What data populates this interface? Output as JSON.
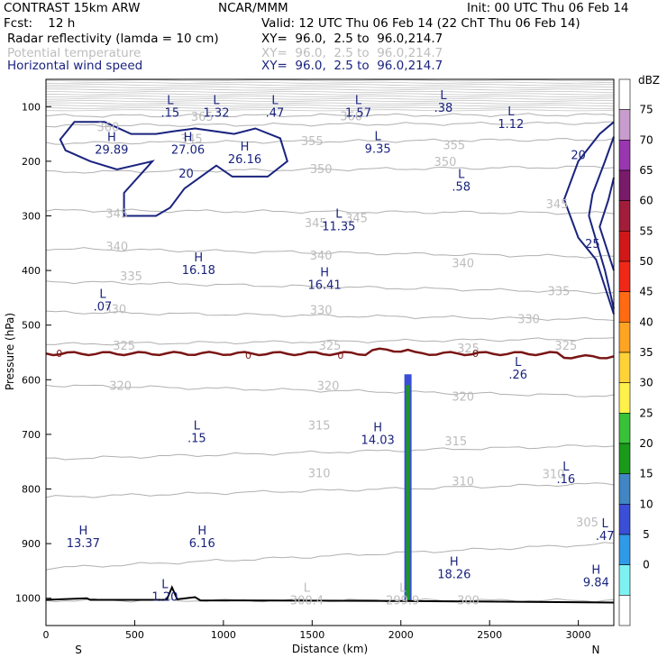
{
  "header": {
    "model": "CONTRAST 15km ARW",
    "org": "NCAR/MMM",
    "init": "Init: 00 UTC Thu 06 Feb 14",
    "fcst": "Fcst:    12 h",
    "valid": "Valid: 12 UTC Thu 06 Feb 14 (22 ChT Thu 06 Feb 14)",
    "fields": [
      {
        "name": "Radar reflectivity (lamda = 10 cm)",
        "xy": "XY=  96.0,  2.5 to  96.0,214.7",
        "color": "#000000"
      },
      {
        "name": "Potential temperature",
        "xy": "XY=  96.0,  2.5 to  96.0,214.7",
        "color": "#bdbdbd"
      },
      {
        "name": "Horizontal wind speed",
        "xy": "XY=  96.0,  2.5 to  96.0,214.7",
        "color": "#1a237e"
      }
    ]
  },
  "chart_data": {
    "type": "cross-section",
    "xlabel": "Distance (km)",
    "ylabel": "Pressure (hPa)",
    "xlim": [
      0,
      3200
    ],
    "ylim": [
      1050,
      50
    ],
    "x_ticks": [
      0,
      500,
      1000,
      1500,
      2000,
      2500,
      3000
    ],
    "y_ticks": [
      100,
      200,
      300,
      400,
      500,
      600,
      700,
      800,
      900,
      1000
    ],
    "endpoints": {
      "left": "S",
      "right": "N"
    },
    "colorbar": {
      "title": "dBZ",
      "levels": [
        "75",
        "70",
        "65",
        "60",
        "55",
        "50",
        "45",
        "40",
        "35",
        "30",
        "25",
        "20",
        "15",
        "10",
        "5",
        "0"
      ],
      "colors": [
        "#ffffff",
        "#c89ccc",
        "#9a36b0",
        "#7a1a6a",
        "#a11d3a",
        "#d01818",
        "#f02818",
        "#ff6a12",
        "#ffa422",
        "#ffd238",
        "#fff14a",
        "#38c238",
        "#1a9a1a",
        "#3f86c2",
        "#3a4ed6",
        "#2f9ae8",
        "#7ef2f2",
        "#ffffff"
      ]
    },
    "theta_contours": [
      {
        "level": 300,
        "p": [
          1004,
          1004
        ]
      },
      {
        "level": 305,
        "p": [
          945,
          900
        ]
      },
      {
        "level": 310,
        "p": [
          815,
          790
        ]
      },
      {
        "level": 315,
        "p": [
          745,
          720
        ]
      },
      {
        "level": 320,
        "p": [
          610,
          630
        ]
      },
      {
        "level": 325,
        "p": [
          535,
          525
        ]
      },
      {
        "level": 330,
        "p": [
          476,
          490
        ]
      },
      {
        "level": 335,
        "p": [
          420,
          440
        ]
      },
      {
        "level": 340,
        "p": [
          360,
          375
        ]
      },
      {
        "level": 345,
        "p": [
          290,
          295
        ]
      },
      {
        "level": 350,
        "p": [
          220,
          210
        ]
      },
      {
        "level": 355,
        "p": [
          167,
          160
        ]
      },
      {
        "level": 360,
        "p": [
          135,
          130
        ]
      },
      {
        "level": 365,
        "p": [
          117,
          115
        ]
      }
    ],
    "theta_labels": [
      {
        "text": "365",
        "x": 880,
        "p": 118
      },
      {
        "text": "360",
        "x": 350,
        "p": 137
      },
      {
        "text": "360",
        "x": 1720,
        "p": 117
      },
      {
        "text": "355",
        "x": 1500,
        "p": 162
      },
      {
        "text": "355",
        "x": 2300,
        "p": 170
      },
      {
        "text": "350",
        "x": 2250,
        "p": 200
      },
      {
        "text": "350",
        "x": 1550,
        "p": 213
      },
      {
        "text": "345",
        "x": 820,
        "p": 158
      },
      {
        "text": "345",
        "x": 2880,
        "p": 278
      },
      {
        "text": "345",
        "x": 400,
        "p": 295
      },
      {
        "text": "345",
        "x": 1520,
        "p": 312
      },
      {
        "text": "345",
        "x": 1750,
        "p": 303
      },
      {
        "text": "340",
        "x": 400,
        "p": 355
      },
      {
        "text": "340",
        "x": 1550,
        "p": 372
      },
      {
        "text": "340",
        "x": 2350,
        "p": 386
      },
      {
        "text": "335",
        "x": 480,
        "p": 410
      },
      {
        "text": "335",
        "x": 2890,
        "p": 437
      },
      {
        "text": "330",
        "x": 390,
        "p": 470
      },
      {
        "text": "330",
        "x": 1550,
        "p": 472
      },
      {
        "text": "330",
        "x": 2720,
        "p": 488
      },
      {
        "text": "325",
        "x": 440,
        "p": 537
      },
      {
        "text": "325",
        "x": 1600,
        "p": 537
      },
      {
        "text": "325",
        "x": 2380,
        "p": 542
      },
      {
        "text": "325",
        "x": 2930,
        "p": 537
      },
      {
        "text": "320",
        "x": 420,
        "p": 610
      },
      {
        "text": "320",
        "x": 1590,
        "p": 610
      },
      {
        "text": "320",
        "x": 2350,
        "p": 630
      },
      {
        "text": "315",
        "x": 1540,
        "p": 683
      },
      {
        "text": "315",
        "x": 2310,
        "p": 712
      },
      {
        "text": "310",
        "x": 1540,
        "p": 770
      },
      {
        "text": "310",
        "x": 2350,
        "p": 785
      },
      {
        "text": "310",
        "x": 2860,
        "p": 772
      },
      {
        "text": "305",
        "x": 3050,
        "p": 860
      },
      {
        "text": "300",
        "x": 2380,
        "p": 1003
      }
    ],
    "wind_contours": [
      {
        "level": 20,
        "label_at": [
          {
            "x": 790,
            "p": 222
          },
          {
            "x": 3000,
            "p": 188
          }
        ]
      },
      {
        "level": 25,
        "label_at": [
          {
            "x": 3080,
            "p": 350
          }
        ]
      }
    ],
    "zero_line_labels": [
      {
        "text": "0",
        "x": 75,
        "p": 552
      },
      {
        "text": "0",
        "x": 1140,
        "p": 555
      },
      {
        "text": "0",
        "x": 1660,
        "p": 555
      },
      {
        "text": "0",
        "x": 2420,
        "p": 552
      }
    ],
    "extrema": [
      {
        "letter": "L",
        "value": ".15",
        "x": 700,
        "p": 97,
        "color": "#1a237e"
      },
      {
        "letter": "L",
        "value": "1.32",
        "x": 960,
        "p": 97,
        "color": "#1a237e"
      },
      {
        "letter": "L",
        "value": ".47",
        "x": 1290,
        "p": 97,
        "color": "#1a237e"
      },
      {
        "letter": "L",
        "value": "1.57",
        "x": 1760,
        "p": 97,
        "color": "#1a237e"
      },
      {
        "letter": "L",
        "value": ".38",
        "x": 2240,
        "p": 88,
        "color": "#1a237e"
      },
      {
        "letter": "L",
        "value": "1.12",
        "x": 2620,
        "p": 118,
        "color": "#1a237e"
      },
      {
        "letter": "H",
        "value": "29.89",
        "x": 370,
        "p": 165,
        "color": "#1a237e"
      },
      {
        "letter": "H",
        "value": "27.06",
        "x": 800,
        "p": 165,
        "color": "#1a237e"
      },
      {
        "letter": "H",
        "value": "26.16",
        "x": 1120,
        "p": 182,
        "color": "#1a237e"
      },
      {
        "letter": "L",
        "value": "9.35",
        "x": 1870,
        "p": 163,
        "color": "#1a237e"
      },
      {
        "letter": "L",
        "value": ".58",
        "x": 2340,
        "p": 232,
        "color": "#1a237e"
      },
      {
        "letter": "L",
        "value": "11.35",
        "x": 1650,
        "p": 305,
        "color": "#1a237e"
      },
      {
        "letter": "H",
        "value": "16.18",
        "x": 860,
        "p": 385,
        "color": "#1a237e"
      },
      {
        "letter": "H",
        "value": "16.41",
        "x": 1570,
        "p": 412,
        "color": "#1a237e"
      },
      {
        "letter": "L",
        "value": ".07",
        "x": 320,
        "p": 452,
        "color": "#1a237e"
      },
      {
        "letter": "L",
        "value": ".26",
        "x": 2660,
        "p": 576,
        "color": "#1a237e"
      },
      {
        "letter": "L",
        "value": ".15",
        "x": 850,
        "p": 693,
        "color": "#1a237e"
      },
      {
        "letter": "H",
        "value": "14.03",
        "x": 1870,
        "p": 696,
        "color": "#1a237e"
      },
      {
        "letter": "L",
        "value": ".16",
        "x": 2930,
        "p": 768,
        "color": "#1a237e"
      },
      {
        "letter": "L",
        "value": ".47",
        "x": 3150,
        "p": 872,
        "color": "#1a237e"
      },
      {
        "letter": "H",
        "value": "13.37",
        "x": 210,
        "p": 885,
        "color": "#1a237e"
      },
      {
        "letter": "H",
        "value": "6.16",
        "x": 880,
        "p": 885,
        "color": "#1a237e"
      },
      {
        "letter": "H",
        "value": "18.26",
        "x": 2300,
        "p": 942,
        "color": "#1a237e"
      },
      {
        "letter": "H",
        "value": "9.84",
        "x": 3100,
        "p": 957,
        "color": "#1a237e"
      },
      {
        "letter": "L",
        "value": "1.20",
        "x": 670,
        "p": 983,
        "color": "#1a237e"
      },
      {
        "letter": "L",
        "value": "300.4",
        "x": 1470,
        "p": 990,
        "color": "#bdbdbd"
      },
      {
        "letter": "L",
        "value": "299.9",
        "x": 2010,
        "p": 990,
        "color": "#bdbdbd"
      }
    ],
    "reflectivity_column": {
      "x": 2040,
      "p_top": 590,
      "p_bottom": 1005,
      "dbz_core": 20,
      "dbz_edge": 10
    },
    "terrain_p": [
      [
        0,
        1003
      ],
      [
        230,
        1000
      ],
      [
        250,
        1003
      ],
      [
        680,
        1003
      ],
      [
        710,
        980
      ],
      [
        740,
        1002
      ],
      [
        840,
        998
      ],
      [
        870,
        1004
      ],
      [
        2000,
        1005
      ],
      [
        2800,
        1007
      ],
      [
        3200,
        1008
      ]
    ]
  }
}
